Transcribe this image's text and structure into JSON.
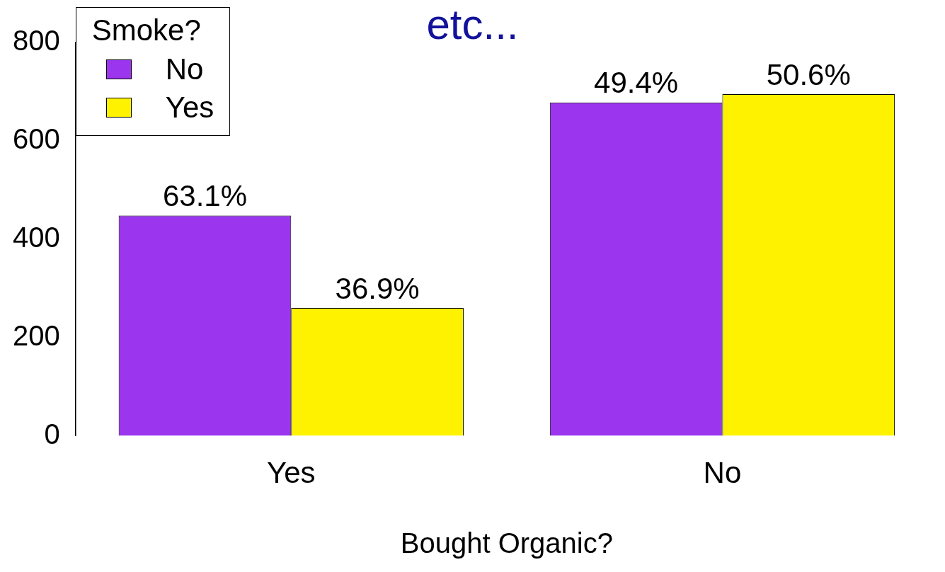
{
  "chart_data": {
    "type": "bar",
    "title": "etc...",
    "xlabel": "Bought Organic?",
    "legend_title": "Smoke?",
    "legend": "top left",
    "grid": false,
    "categories": [
      "Yes",
      "No"
    ],
    "series": [
      {
        "name": "No",
        "color": "#9b35ee",
        "values": [
          448,
          678
        ]
      },
      {
        "name": "Yes",
        "color": "#fff200",
        "values": [
          260,
          695
        ]
      }
    ],
    "annotations": [
      {
        "text": "63.1%",
        "x": "Yes",
        "y": 448
      },
      {
        "text": "36.9%",
        "x": "Yes",
        "y": 260
      },
      {
        "text": "49.4%",
        "x": "No",
        "y": 678
      },
      {
        "text": "50.6%",
        "x": "No",
        "y": 695
      }
    ],
    "ylim": [
      0,
      800
    ],
    "yticks": [
      0,
      200,
      400,
      600,
      800
    ]
  }
}
